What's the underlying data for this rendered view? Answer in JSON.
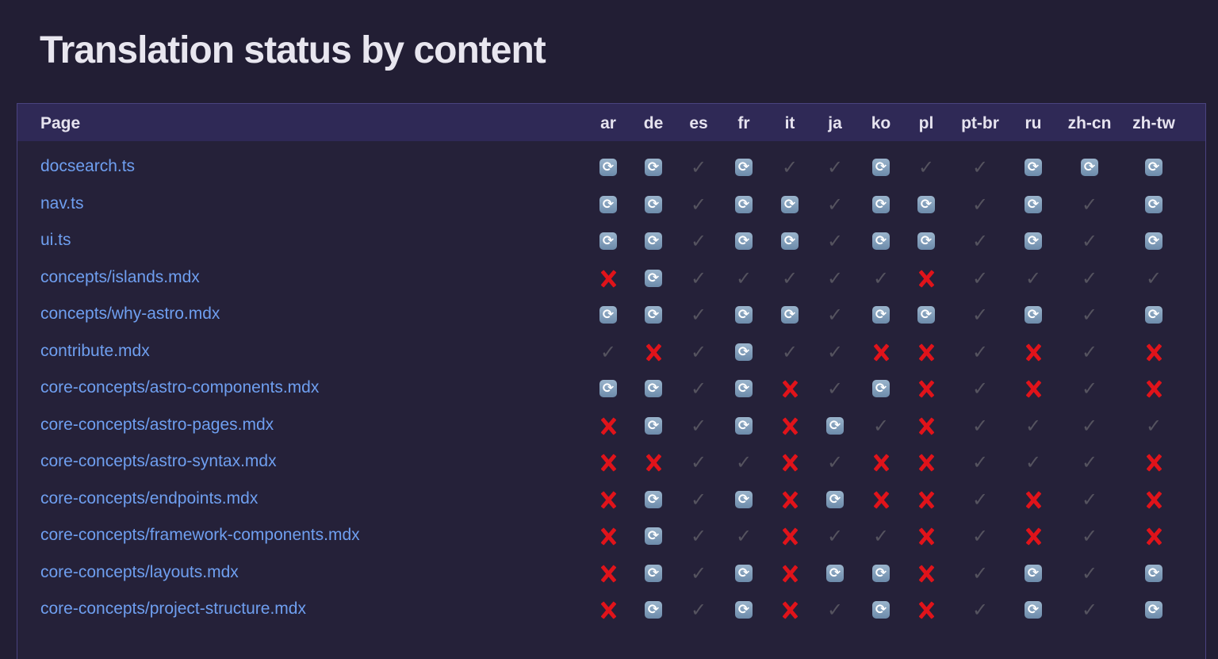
{
  "title": "Translation status by content",
  "header": {
    "page_label": "Page",
    "languages": [
      "ar",
      "de",
      "es",
      "fr",
      "it",
      "ja",
      "ko",
      "pl",
      "pt-br",
      "ru",
      "zh-cn",
      "zh-tw"
    ]
  },
  "legend": {
    "U": "needs-update-icon",
    "C": "done-check-icon",
    "X": "missing-icon"
  },
  "colors": {
    "background": "#221e34",
    "header": "#2f2956",
    "link": "#6f9ff0",
    "missing": "#e0131a",
    "done": "#55535f"
  },
  "rows": [
    {
      "page": "docsearch.ts",
      "status": [
        "U",
        "U",
        "C",
        "U",
        "C",
        "C",
        "U",
        "C",
        "C",
        "U",
        "U",
        "U"
      ]
    },
    {
      "page": "nav.ts",
      "status": [
        "U",
        "U",
        "C",
        "U",
        "U",
        "C",
        "U",
        "U",
        "C",
        "U",
        "C",
        "U"
      ]
    },
    {
      "page": "ui.ts",
      "status": [
        "U",
        "U",
        "C",
        "U",
        "U",
        "C",
        "U",
        "U",
        "C",
        "U",
        "C",
        "U"
      ]
    },
    {
      "page": "concepts/islands.mdx",
      "status": [
        "X",
        "U",
        "C",
        "C",
        "C",
        "C",
        "C",
        "X",
        "C",
        "C",
        "C",
        "C"
      ]
    },
    {
      "page": "concepts/why-astro.mdx",
      "status": [
        "U",
        "U",
        "C",
        "U",
        "U",
        "C",
        "U",
        "U",
        "C",
        "U",
        "C",
        "U"
      ]
    },
    {
      "page": "contribute.mdx",
      "status": [
        "C",
        "X",
        "C",
        "U",
        "C",
        "C",
        "X",
        "X",
        "C",
        "X",
        "C",
        "X"
      ]
    },
    {
      "page": "core-concepts/astro-components.mdx",
      "status": [
        "U",
        "U",
        "C",
        "U",
        "X",
        "C",
        "U",
        "X",
        "C",
        "X",
        "C",
        "X"
      ]
    },
    {
      "page": "core-concepts/astro-pages.mdx",
      "status": [
        "X",
        "U",
        "C",
        "U",
        "X",
        "U",
        "C",
        "X",
        "C",
        "C",
        "C",
        "C"
      ]
    },
    {
      "page": "core-concepts/astro-syntax.mdx",
      "status": [
        "X",
        "X",
        "C",
        "C",
        "X",
        "C",
        "X",
        "X",
        "C",
        "C",
        "C",
        "X"
      ]
    },
    {
      "page": "core-concepts/endpoints.mdx",
      "status": [
        "X",
        "U",
        "C",
        "U",
        "X",
        "U",
        "X",
        "X",
        "C",
        "X",
        "C",
        "X"
      ]
    },
    {
      "page": "core-concepts/framework-components.mdx",
      "status": [
        "X",
        "U",
        "C",
        "C",
        "X",
        "C",
        "C",
        "X",
        "C",
        "X",
        "C",
        "X"
      ]
    },
    {
      "page": "core-concepts/layouts.mdx",
      "status": [
        "X",
        "U",
        "C",
        "U",
        "X",
        "U",
        "U",
        "X",
        "C",
        "U",
        "C",
        "U"
      ]
    },
    {
      "page": "core-concepts/project-structure.mdx",
      "status": [
        "X",
        "U",
        "C",
        "U",
        "X",
        "C",
        "U",
        "X",
        "C",
        "U",
        "C",
        "U"
      ]
    }
  ]
}
